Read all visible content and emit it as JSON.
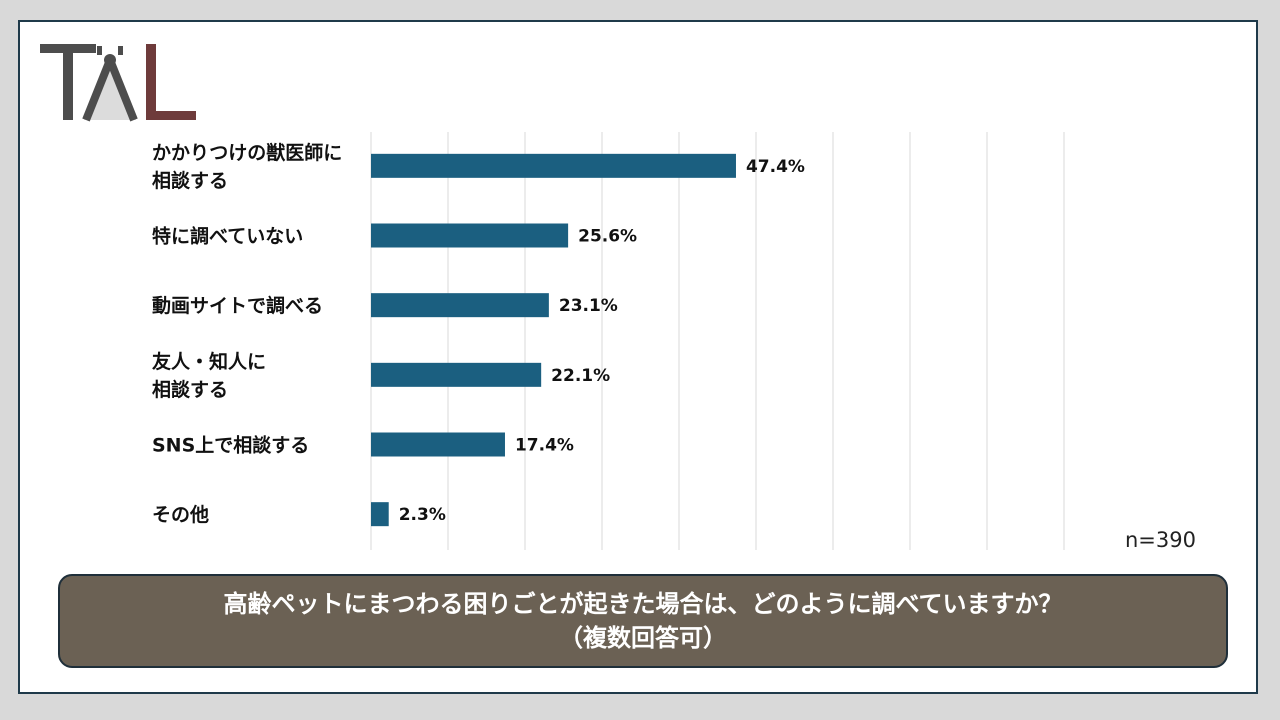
{
  "colors": {
    "bar": "#1b5f80",
    "grid": "#d9d9d9",
    "logo_dark": "#4d4d4d",
    "logo_accent": "#6e3b3b"
  },
  "logo": {
    "icon": "tal-logo-icon"
  },
  "footnote": {
    "n": "n=390"
  },
  "question": {
    "line1": "高齢ペットにまつわる困りごとが起きた場合は、どのように調べていますか？",
    "line2": "（複数回答可）"
  },
  "chart_data": {
    "type": "bar",
    "orientation": "horizontal",
    "title": "",
    "xlabel": "",
    "ylabel": "",
    "xlim": [
      0,
      90
    ],
    "grid": true,
    "categories": [
      [
        "かかりつけの獣医師に",
        "相談する"
      ],
      [
        "特に調べていない"
      ],
      [
        "動画サイトで調べる"
      ],
      [
        "友人・知人に",
        "相談する"
      ],
      [
        "SNS上で相談する"
      ],
      [
        "その他"
      ]
    ],
    "values": [
      47.4,
      25.6,
      23.1,
      22.1,
      17.4,
      2.3
    ],
    "data_labels": [
      "47.4%",
      "25.6%",
      "23.1%",
      "22.1%",
      "17.4%",
      "2.3%"
    ]
  }
}
